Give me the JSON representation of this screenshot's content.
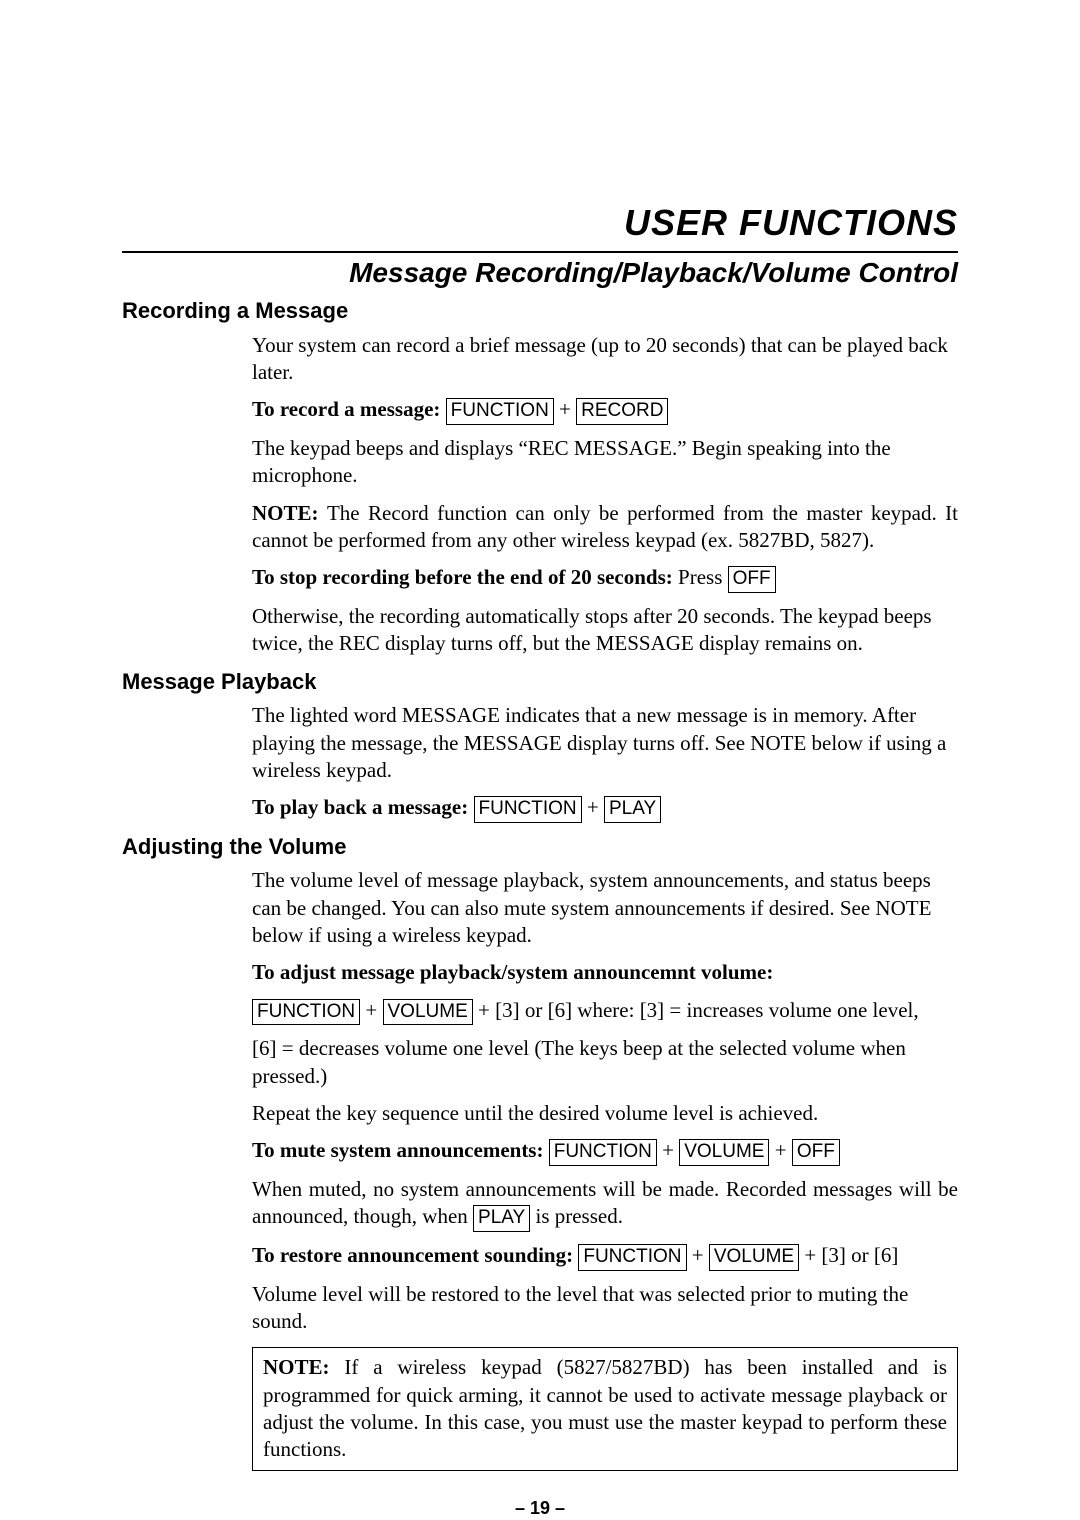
{
  "title": "USER FUNCTIONS",
  "subtitle": "Message Recording/Playback/Volume Control",
  "sec1": {
    "head": "Recording a Message",
    "p1": "Your system can record a brief message (up to 20 seconds) that can be played back later.",
    "label_record": "To record a message: ",
    "key_function": "FUNCTION",
    "plus": "  +  ",
    "key_record": "RECORD",
    "p2": "The keypad beeps and displays “REC MESSAGE.” Begin speaking into the microphone.",
    "note_label": "NOTE: ",
    "note_body": "The Record function can only be performed from the master keypad.  It cannot be performed from any other wireless keypad (ex. 5827BD, 5827).",
    "label_stop": "To stop recording before the end of 20 seconds: ",
    "press": "Press ",
    "key_off": "OFF",
    "p3": "Otherwise, the recording automatically stops after 20 seconds.  The keypad beeps twice, the REC display turns off, but the MESSAGE display remains on."
  },
  "sec2": {
    "head": "Message Playback",
    "p1": "The lighted word MESSAGE indicates that a new message is in memory. After playing the message, the MESSAGE display turns off. See NOTE below if using a wireless keypad.",
    "label_play": "To play back a message: ",
    "key_function": "FUNCTION",
    "plus": "  +  ",
    "key_play": "PLAY"
  },
  "sec3": {
    "head": "Adjusting the Volume",
    "p1": "The volume level of message playback, system announcements, and status beeps can be changed. You can also mute system announcements if desired. See NOTE below if using a wireless keypad.",
    "label_adjust": "To adjust message playback/system announcemnt volume:",
    "key_function": "FUNCTION",
    "plus": "  +  ",
    "key_volume": "VOLUME",
    "tail_adjust": " + [3] or [6]     where:   [3] = increases volume one level,",
    "p2": "[6] = decreases volume one level (The keys beep at the selected volume when pressed.)",
    "p3": "Repeat the key sequence until the desired volume level is achieved.",
    "label_mute": "To mute system announcements: ",
    "key_off": "OFF",
    "mute_p1a": "When muted, no system announcements will be made.  Recorded messages will be announced, though, when ",
    "key_play": "PLAY",
    "mute_p1b": " is pressed.",
    "label_restore": "To restore announcement sounding: ",
    "tail_restore": " + [3]  or [6]",
    "p4": "Volume level will be restored to the level that was selected prior to muting the sound."
  },
  "notebox": {
    "label": "NOTE: ",
    "body": "If a wireless keypad (5827/5827BD) has been installed and is programmed for quick arming, it cannot be used to activate message playback or adjust the volume. In this case, you must use the master keypad to perform these functions."
  },
  "page_number": "– 19 –"
}
